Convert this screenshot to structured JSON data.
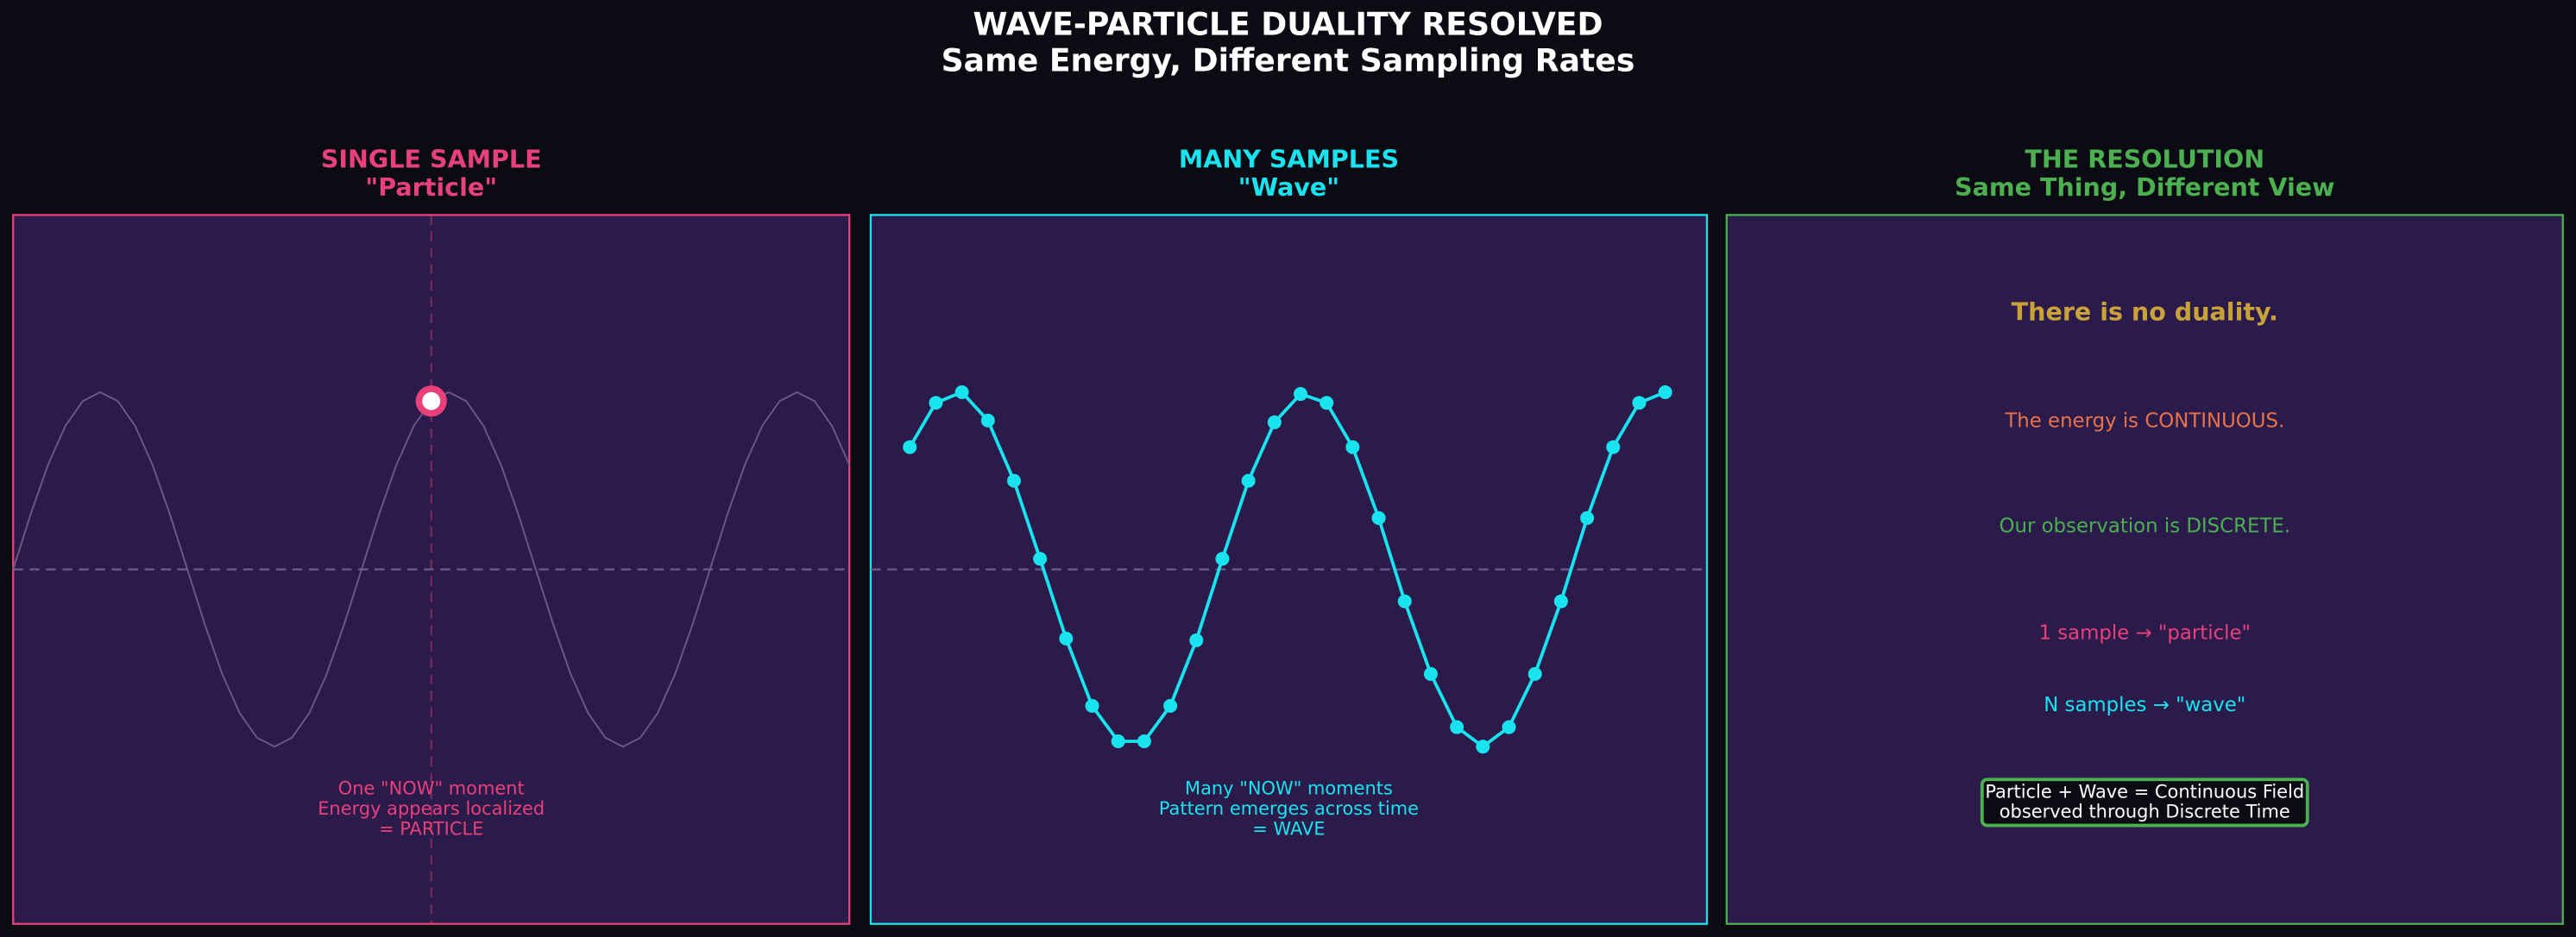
{
  "title": "WAVE-PARTICLE DUALITY RESOLVED",
  "subtitle": "Same Energy, Different Sampling Rates",
  "chart_data": [
    {
      "type": "line",
      "title": [
        "SINGLE SAMPLE",
        "\"Particle\""
      ],
      "color": "#e8407a",
      "xlim": [
        0,
        2.4
      ],
      "ylim": [
        -2,
        2
      ],
      "zero_line": 0,
      "vline": 1.2,
      "series": [
        {
          "color": "#6b5a85",
          "markers": false,
          "x": [
            0,
            0.05,
            0.1,
            0.15,
            0.2,
            0.25,
            0.3,
            0.35,
            0.4,
            0.45,
            0.5,
            0.55,
            0.6,
            0.65,
            0.7,
            0.75,
            0.8,
            0.85,
            0.9,
            0.95,
            1,
            1.05,
            1.1,
            1.15,
            1.2,
            1.25,
            1.3,
            1.35,
            1.4,
            1.45,
            1.5,
            1.55,
            1.6,
            1.65,
            1.7,
            1.75,
            1.8,
            1.85,
            1.9,
            1.95,
            2,
            2.05,
            2.1,
            2.15,
            2.2,
            2.25,
            2.3,
            2.35,
            2.4
          ],
          "values": [
            0,
            0.31,
            0.59,
            0.81,
            0.95,
            1,
            0.95,
            0.81,
            0.59,
            0.31,
            0,
            -0.31,
            -0.59,
            -0.81,
            -0.95,
            -1,
            -0.95,
            -0.81,
            -0.59,
            -0.31,
            0,
            0.31,
            0.59,
            0.81,
            0.95,
            1,
            0.95,
            0.81,
            0.59,
            0.31,
            0,
            -0.31,
            -0.59,
            -0.81,
            -0.95,
            -1,
            -0.95,
            -0.81,
            -0.59,
            -0.31,
            0,
            0.31,
            0.59,
            0.81,
            0.95,
            1,
            0.95,
            0.81,
            0.59
          ]
        },
        {
          "color": "#e8407a",
          "markers": true,
          "marker_style": "ring",
          "x": [
            1.2
          ],
          "values": [
            0.95
          ]
        }
      ],
      "annotation": [
        "One \"NOW\" moment",
        "Energy appears localized",
        "= PARTICLE"
      ]
    },
    {
      "type": "line",
      "title": [
        "MANY SAMPLES",
        "\"Wave\""
      ],
      "color": "#19e3ef",
      "xlim": [
        -1.5,
        30.6
      ],
      "ylim": [
        -2,
        2
      ],
      "zero_line": 0,
      "series": [
        {
          "color": "#19e3ef",
          "markers": true,
          "x": [
            0,
            1,
            2,
            3,
            4,
            5,
            6,
            7,
            8,
            9,
            10,
            11,
            12,
            13,
            14,
            15,
            16,
            17,
            18,
            19,
            20,
            21,
            22,
            23,
            24,
            25,
            26,
            27,
            28,
            29
          ],
          "values": [
            0.69,
            0.94,
            1,
            0.84,
            0.5,
            0.06,
            -0.39,
            -0.77,
            -0.97,
            -0.97,
            -0.77,
            -0.4,
            0.06,
            0.5,
            0.83,
            0.99,
            0.94,
            0.69,
            0.29,
            -0.18,
            -0.59,
            -0.89,
            -1,
            -0.89,
            -0.59,
            -0.18,
            0.29,
            0.69,
            0.94,
            1
          ]
        }
      ],
      "annotation": [
        "Many \"NOW\" moments",
        "Pattern emerges across time",
        "= WAVE"
      ]
    },
    {
      "type": "text",
      "title": [
        "THE RESOLUTION",
        "Same Thing, Different View"
      ],
      "color": "#4caf50",
      "lines": [
        {
          "text": "There is no duality.",
          "color": "#c9a23a"
        },
        {
          "text": "The energy is CONTINUOUS.",
          "color": "#e8734a"
        },
        {
          "text": "Our observation is DISCRETE.",
          "color": "#4caf50"
        },
        {
          "text": "1 sample → \"particle\"",
          "color": "#e8407a"
        },
        {
          "text": "N samples → \"wave\"",
          "color": "#19e3ef"
        }
      ],
      "box": {
        "lines": [
          "Particle + Wave = Continuous Field",
          "observed through Discrete Time"
        ],
        "border": "#4caf50",
        "text_color": "#ffffff"
      }
    }
  ]
}
